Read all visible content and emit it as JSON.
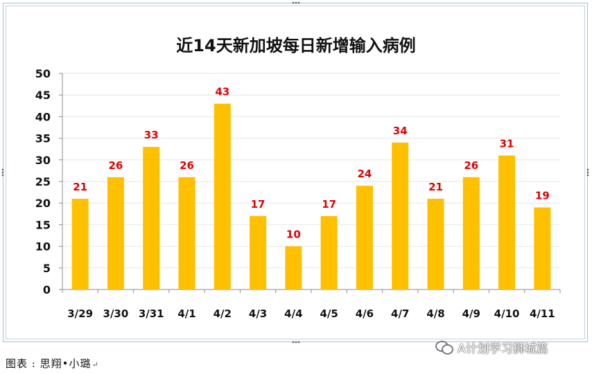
{
  "chart_data": {
    "type": "bar",
    "title": "近14天新加坡每日新增输入病例",
    "categories": [
      "3/29",
      "3/30",
      "3/31",
      "4/1",
      "4/2",
      "4/3",
      "4/4",
      "4/5",
      "4/6",
      "4/7",
      "4/8",
      "4/9",
      "4/10",
      "4/11"
    ],
    "values": [
      21,
      26,
      33,
      26,
      43,
      17,
      10,
      17,
      24,
      34,
      21,
      26,
      31,
      19
    ],
    "ylim": [
      0,
      50
    ],
    "yticks": [
      0,
      5,
      10,
      15,
      20,
      25,
      30,
      35,
      40,
      45,
      50
    ],
    "xlabel": "",
    "ylabel": "",
    "bar_color": "#ffc000",
    "label_color": "#e00000",
    "grid": true,
    "legend": "none"
  },
  "watermark": {
    "icon": "wechat-icon",
    "text": "A计划学习狮城篇"
  },
  "caption": {
    "text": "图表 : 思翔•小璐",
    "return_mark": "↵"
  }
}
